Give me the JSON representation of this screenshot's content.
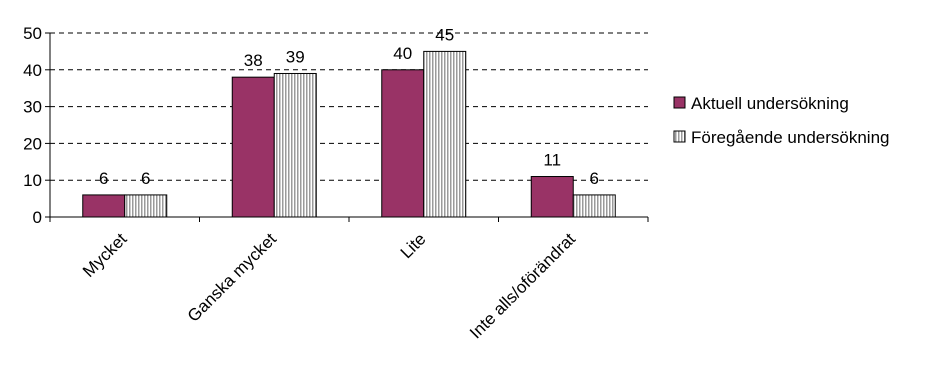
{
  "chart_data": {
    "type": "bar",
    "title": "",
    "xlabel": "",
    "ylabel": "",
    "categories": [
      "Mycket",
      "Ganska mycket",
      "Lite",
      "Inte alls/oförändrat"
    ],
    "series": [
      {
        "name": "Aktuell undersökning",
        "values": [
          6,
          38,
          40,
          11
        ],
        "color": "#993366",
        "pattern": "solid"
      },
      {
        "name": "Föregående undersökning",
        "values": [
          6,
          39,
          45,
          6
        ],
        "color": "#c0c0c0",
        "pattern": "vertical-stripes"
      }
    ],
    "ylim": [
      0,
      50
    ],
    "yticks": [
      0,
      10,
      20,
      30,
      40,
      50
    ],
    "grid": "dashed-horizontal",
    "legend": "right"
  }
}
